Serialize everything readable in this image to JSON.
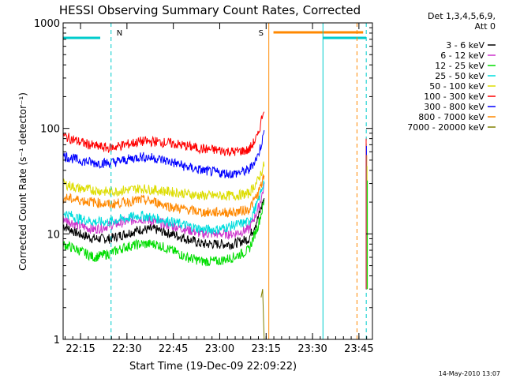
{
  "chart_data": {
    "type": "line",
    "title": "HESSI Observing Summary Count Rates, Corrected",
    "xlabel": "Start Time (19-Dec-09 22:09:22)",
    "ylabel": "Corrected Count Rate (s⁻¹ detector⁻¹)",
    "log_y": true,
    "grid": false,
    "legend_position": "right",
    "xlim_minutes_after_2209": [
      0,
      100
    ],
    "ylim": [
      1,
      1000
    ],
    "x_tick_labels": [
      "22:15",
      "22:30",
      "22:45",
      "23:00",
      "23:15",
      "23:30",
      "23:45"
    ],
    "y_tick_labels": [
      "1",
      "10",
      "100",
      "1000"
    ],
    "legend_header": [
      "Det 1,3,4,5,6,9,",
      "Att 0"
    ],
    "series": [
      {
        "name": "3 - 6 keV",
        "color": "#000000",
        "values": [
          [
            0,
            12
          ],
          [
            5,
            10
          ],
          [
            10,
            9
          ],
          [
            15,
            9
          ],
          [
            20,
            10
          ],
          [
            25,
            11
          ],
          [
            30,
            11
          ],
          [
            35,
            10
          ],
          [
            40,
            9
          ],
          [
            45,
            8
          ],
          [
            50,
            8
          ],
          [
            55,
            8
          ],
          [
            60,
            9
          ],
          [
            63,
            14
          ],
          [
            65,
            22
          ]
        ]
      },
      {
        "name": "6 - 12 keV",
        "color": "#cc33cc",
        "values": [
          [
            0,
            14
          ],
          [
            5,
            12
          ],
          [
            10,
            11
          ],
          [
            15,
            12
          ],
          [
            20,
            13
          ],
          [
            25,
            14
          ],
          [
            30,
            13
          ],
          [
            35,
            12
          ],
          [
            40,
            11
          ],
          [
            45,
            10
          ],
          [
            50,
            10
          ],
          [
            55,
            10
          ],
          [
            60,
            11
          ],
          [
            63,
            17
          ],
          [
            65,
            28
          ]
        ]
      },
      {
        "name": "12 - 25 keV",
        "color": "#00dd00",
        "values": [
          [
            0,
            8
          ],
          [
            5,
            7
          ],
          [
            10,
            6
          ],
          [
            15,
            6.5
          ],
          [
            20,
            7.5
          ],
          [
            25,
            8
          ],
          [
            30,
            8
          ],
          [
            35,
            7
          ],
          [
            40,
            6
          ],
          [
            45,
            5.5
          ],
          [
            50,
            5.5
          ],
          [
            55,
            6
          ],
          [
            60,
            7
          ],
          [
            63,
            12
          ],
          [
            65,
            20
          ]
        ]
      },
      {
        "name": "25 - 50 keV",
        "color": "#00dddd",
        "values": [
          [
            0,
            16
          ],
          [
            5,
            14
          ],
          [
            10,
            13
          ],
          [
            15,
            13
          ],
          [
            20,
            14
          ],
          [
            25,
            15
          ],
          [
            30,
            14
          ],
          [
            35,
            13
          ],
          [
            40,
            12
          ],
          [
            45,
            11
          ],
          [
            50,
            11
          ],
          [
            55,
            12
          ],
          [
            60,
            13
          ],
          [
            63,
            20
          ],
          [
            65,
            32
          ]
        ]
      },
      {
        "name": "50 - 100 keV",
        "color": "#dddd00",
        "values": [
          [
            0,
            30
          ],
          [
            5,
            27
          ],
          [
            10,
            26
          ],
          [
            15,
            25
          ],
          [
            20,
            26
          ],
          [
            25,
            27
          ],
          [
            30,
            26
          ],
          [
            35,
            25
          ],
          [
            40,
            24
          ],
          [
            45,
            23
          ],
          [
            50,
            23
          ],
          [
            55,
            23
          ],
          [
            60,
            24
          ],
          [
            63,
            32
          ],
          [
            65,
            45
          ]
        ]
      },
      {
        "name": "100 - 300 keV",
        "color": "#ff0000",
        "values": [
          [
            0,
            85
          ],
          [
            5,
            75
          ],
          [
            10,
            68
          ],
          [
            15,
            65
          ],
          [
            20,
            70
          ],
          [
            25,
            75
          ],
          [
            30,
            75
          ],
          [
            35,
            72
          ],
          [
            40,
            68
          ],
          [
            45,
            64
          ],
          [
            50,
            62
          ],
          [
            55,
            60
          ],
          [
            60,
            62
          ],
          [
            63,
            85
          ],
          [
            65,
            160
          ]
        ]
      },
      {
        "name": "300 - 800 keV",
        "color": "#0000ff",
        "values": [
          [
            0,
            55
          ],
          [
            5,
            50
          ],
          [
            10,
            47
          ],
          [
            15,
            47
          ],
          [
            20,
            50
          ],
          [
            25,
            54
          ],
          [
            30,
            52
          ],
          [
            35,
            48
          ],
          [
            40,
            43
          ],
          [
            45,
            40
          ],
          [
            50,
            38
          ],
          [
            55,
            37
          ],
          [
            60,
            40
          ],
          [
            63,
            55
          ],
          [
            65,
            90
          ]
        ]
      },
      {
        "name": "800 - 7000 keV",
        "color": "#ff8800",
        "values": [
          [
            0,
            22
          ],
          [
            5,
            21
          ],
          [
            10,
            20
          ],
          [
            15,
            19
          ],
          [
            20,
            20
          ],
          [
            25,
            21
          ],
          [
            30,
            20
          ],
          [
            35,
            18
          ],
          [
            40,
            17
          ],
          [
            45,
            16
          ],
          [
            50,
            16
          ],
          [
            55,
            16
          ],
          [
            60,
            17
          ],
          [
            63,
            24
          ],
          [
            65,
            35
          ]
        ]
      },
      {
        "name": "7000 - 20000 keV",
        "color": "#808000",
        "values": [
          [
            64,
            2.5
          ],
          [
            64.5,
            3
          ],
          [
            65,
            1
          ]
        ]
      }
    ],
    "annotations": [
      {
        "label": "N",
        "color": "#00cccc",
        "x": 15.5
      },
      {
        "label": "S",
        "color": "#ff8800",
        "x": 66.5
      }
    ],
    "footer": "14-May-2010 13:07"
  }
}
